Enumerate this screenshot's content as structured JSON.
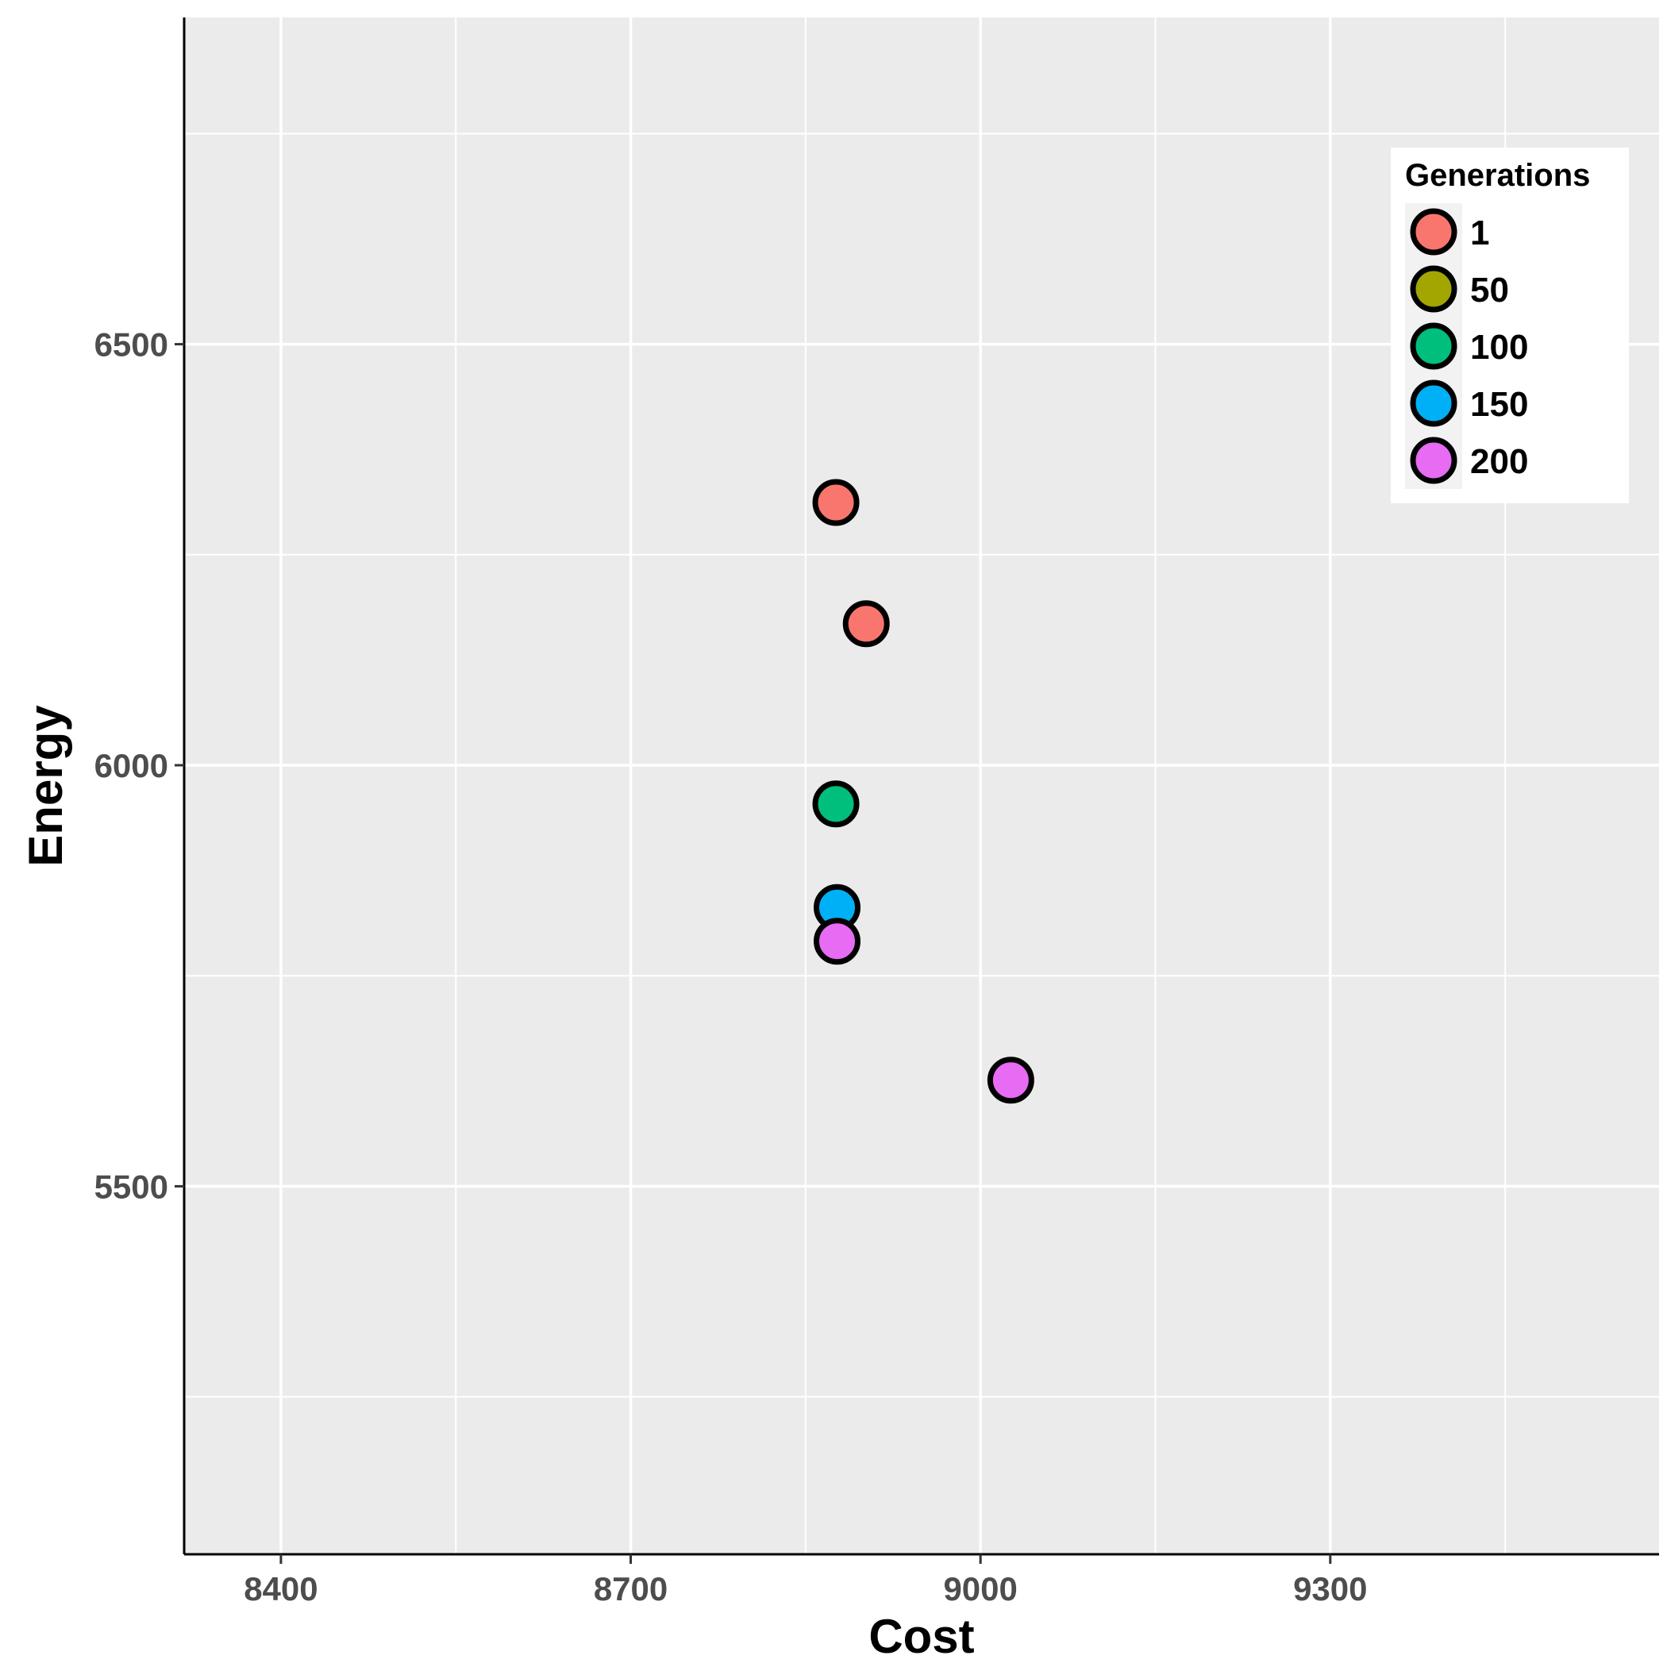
{
  "chart_data": {
    "type": "scatter",
    "title": "",
    "xlabel": "Cost",
    "ylabel": "Energy",
    "xlim": [
      8317,
      9582
    ],
    "ylim": [
      5063,
      6888
    ],
    "x_ticks": [
      8400,
      8700,
      9000,
      9300
    ],
    "x_tick_labels": [
      "8400",
      "8700",
      "9000",
      "9300"
    ],
    "y_ticks": [
      5500,
      6000,
      6500
    ],
    "y_tick_labels": [
      "5500",
      "6000",
      "6500"
    ],
    "x_minor_grid": [
      8550,
      8850,
      9150,
      9450
    ],
    "y_minor_grid": [
      5250,
      5750,
      6250,
      6750
    ],
    "grid": true,
    "background": "#EBEBEB",
    "legend": {
      "title": "Generations",
      "placement": "top-right",
      "entries": [
        {
          "label": "1",
          "color": "#F8766D"
        },
        {
          "label": "50",
          "color": "#A3A500"
        },
        {
          "label": "100",
          "color": "#00BF7D"
        },
        {
          "label": "150",
          "color": "#00B0F6"
        },
        {
          "label": "200",
          "color": "#E76BF3"
        }
      ]
    },
    "series": [
      {
        "name": "1",
        "color": "#F8766D",
        "points": [
          {
            "x": 8876,
            "y": 6312
          },
          {
            "x": 8902,
            "y": 6168
          }
        ]
      },
      {
        "name": "50",
        "color": "#A3A500",
        "points": []
      },
      {
        "name": "100",
        "color": "#00BF7D",
        "points": [
          {
            "x": 8876,
            "y": 5954
          }
        ]
      },
      {
        "name": "150",
        "color": "#00B0F6",
        "points": [
          {
            "x": 8877,
            "y": 5831
          }
        ]
      },
      {
        "name": "200",
        "color": "#E76BF3",
        "points": [
          {
            "x": 8877,
            "y": 5791
          },
          {
            "x": 9026,
            "y": 5626
          }
        ]
      }
    ]
  }
}
